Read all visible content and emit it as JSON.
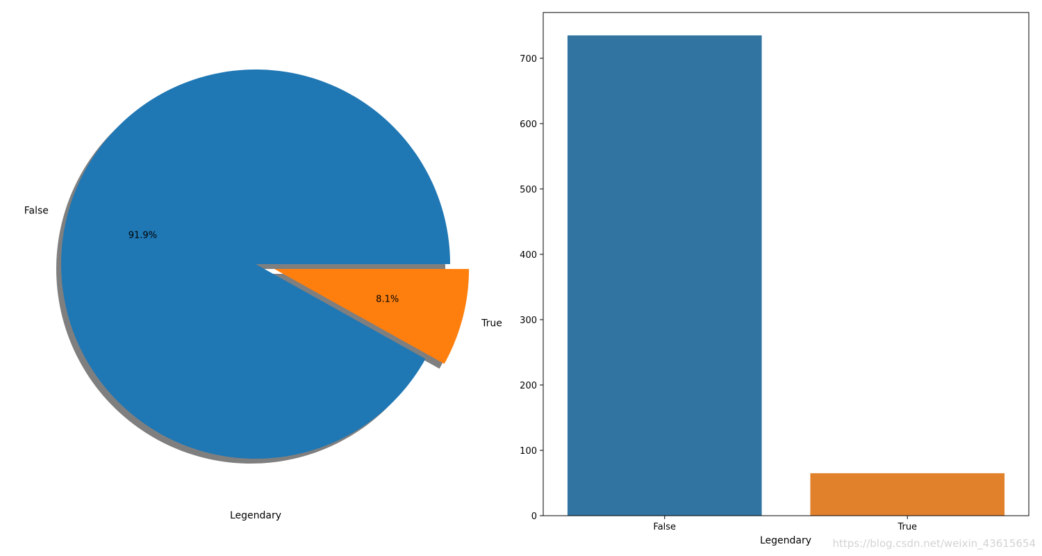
{
  "chart_data": [
    {
      "type": "pie",
      "labels": [
        "False",
        "True"
      ],
      "values": [
        91.9,
        8.1
      ],
      "autopct_labels": [
        "91.9%",
        "8.1%"
      ],
      "explode": [
        0,
        0.1
      ],
      "shadow": true,
      "colors": [
        "#1f77b4",
        "#ff7f0e"
      ],
      "xlabel": "Legendary"
    },
    {
      "type": "bar",
      "categories": [
        "False",
        "True"
      ],
      "values": [
        735,
        65
      ],
      "colors": [
        "#3274a1",
        "#e1812c"
      ],
      "xlabel": "Legendary",
      "ylabel": "",
      "ylim": [
        0,
        770
      ],
      "yticks": [
        0,
        100,
        200,
        300,
        400,
        500,
        600,
        700
      ],
      "grid": false
    }
  ],
  "watermark": "https://blog.csdn.net/weixin_43615654"
}
